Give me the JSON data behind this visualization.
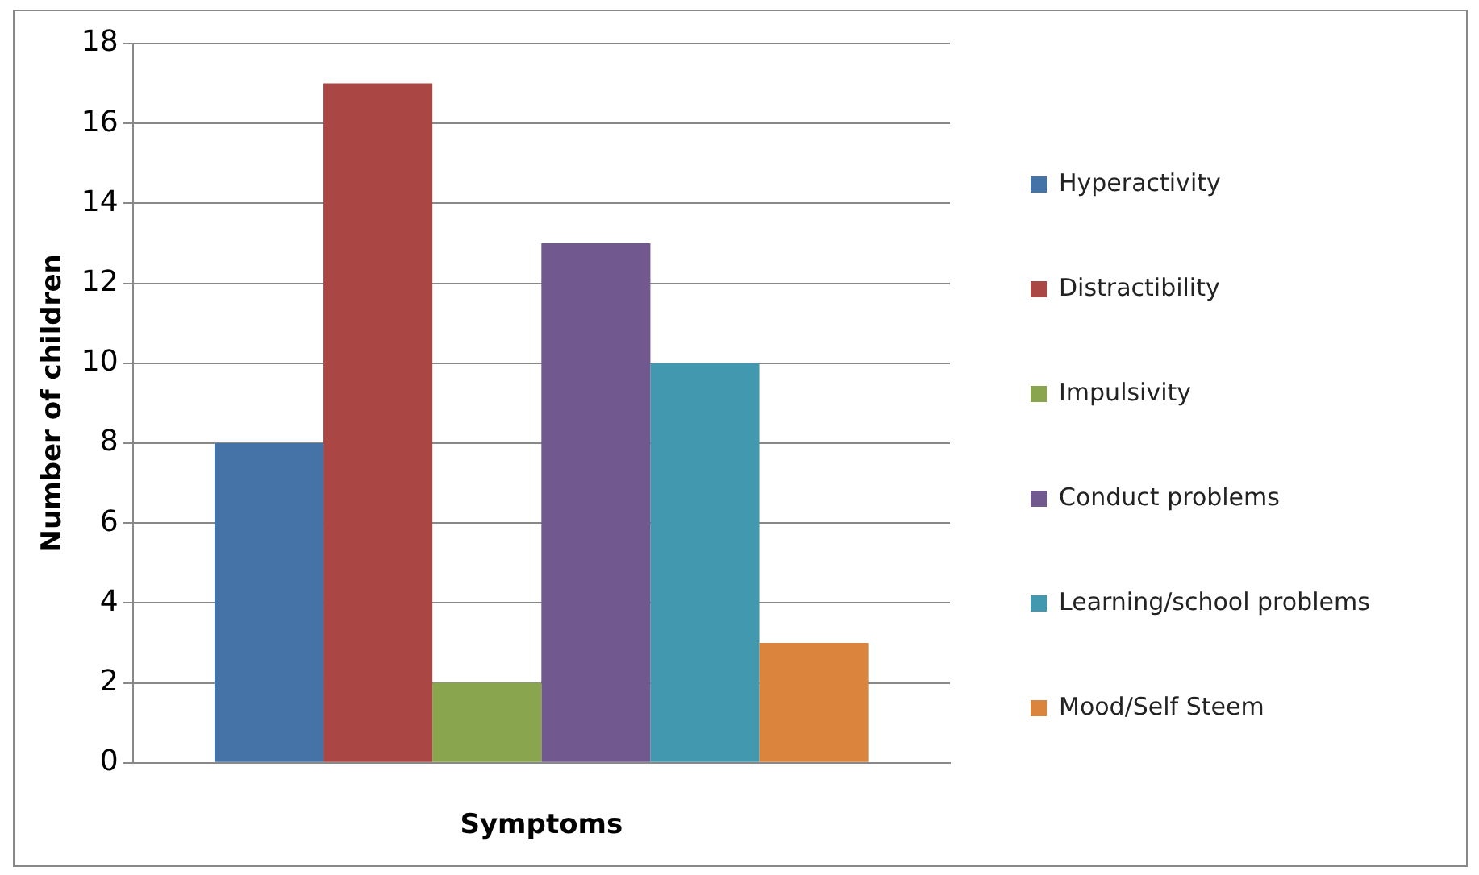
{
  "chart_data": {
    "type": "bar",
    "xlabel": "Symptoms",
    "ylabel": "Number of children",
    "categories": [
      null
    ],
    "series": [
      {
        "name": "Hyperactivity",
        "color": "#4572a7",
        "values": [
          8
        ]
      },
      {
        "name": "Distractibility",
        "color": "#aa4643",
        "values": [
          17
        ]
      },
      {
        "name": "Impulsivity",
        "color": "#89a54e",
        "values": [
          2
        ]
      },
      {
        "name": "Conduct problems",
        "color": "#71588f",
        "values": [
          13
        ]
      },
      {
        "name": "Learning/school problems",
        "color": "#4198af",
        "values": [
          10
        ]
      },
      {
        "name": "Mood/Self Steem",
        "color": "#db843d",
        "values": [
          3
        ]
      }
    ],
    "ylim": [
      0,
      18
    ],
    "yticks": [
      0,
      2,
      4,
      6,
      8,
      10,
      12,
      14,
      16,
      18
    ],
    "grid": "y",
    "legend": "right"
  }
}
